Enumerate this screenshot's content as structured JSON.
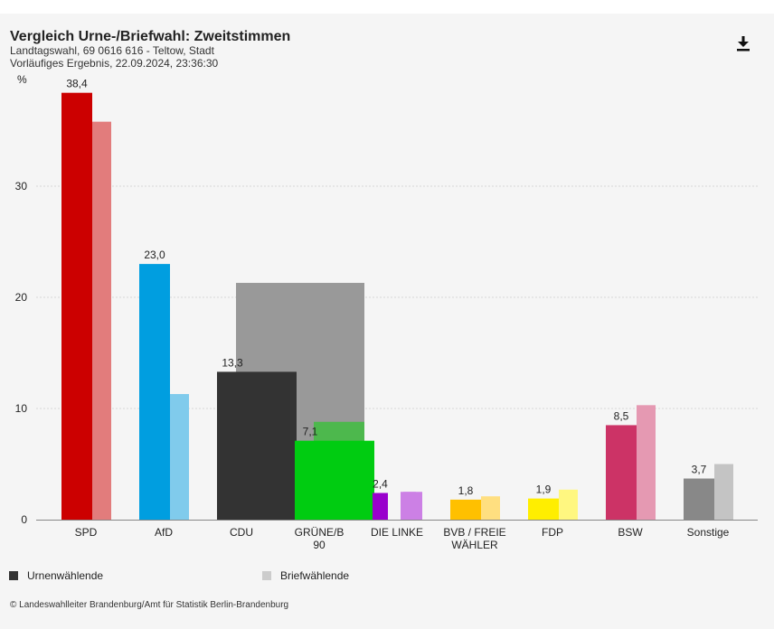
{
  "header": {
    "title": "Vergleich Urne-/Briefwahl: Zweitstimmen",
    "subtitle_line1": "Landtagswahl, 69 0616 616 - Teltow, Stadt",
    "subtitle_line2": "Vorläufiges Ergebnis, 22.09.2024, 23:36:30"
  },
  "legend": {
    "urne_label": "Urnenwählende",
    "brief_label": "Briefwählende",
    "urne_color": "#333333",
    "brief_color": "#cccccc"
  },
  "footer": {
    "source": "© Landeswahlleiter Brandenburg/Amt für Statistik Berlin-Brandenburg"
  },
  "icons": {
    "download": "download-icon"
  },
  "chart_data": {
    "type": "bar",
    "ylabel": "%",
    "ylim": [
      0,
      40
    ],
    "yticks": [
      0,
      10,
      20,
      30
    ],
    "grid": true,
    "categories": [
      {
        "label": [
          "SPD"
        ],
        "urne": 38.4,
        "brief": 35.8,
        "urne_color": "#cc0000",
        "brief_color": "#e27c7c",
        "urne_label": "38,4"
      },
      {
        "label": [
          "AfD"
        ],
        "urne": 23.0,
        "brief": 11.3,
        "urne_color": "#009ee0",
        "brief_color": "#80cbec",
        "urne_label": "23,0"
      },
      {
        "label": [
          "CDU"
        ],
        "urne": 13.3,
        "brief": 21.3,
        "urne_color": "#333333",
        "brief_color": "#999999",
        "urne_label": "13,3"
      },
      {
        "label": [
          "GRÜNE/B",
          "90"
        ],
        "urne": 7.1,
        "brief": 8.8,
        "urne_color": "#00cc11",
        "brief_color": "#4db84d",
        "urne_label": "7,1"
      },
      {
        "label": [
          "DIE LINKE"
        ],
        "urne": 2.4,
        "brief": 2.5,
        "urne_color": "#9900cc",
        "brief_color": "#cc80e5",
        "urne_label": "2,4"
      },
      {
        "label": [
          "BVB / FREIE",
          "WÄHLER"
        ],
        "urne": 1.8,
        "brief": 2.1,
        "urne_color": "#ffc000",
        "brief_color": "#ffdf80",
        "urne_label": "1,8"
      },
      {
        "label": [
          "FDP"
        ],
        "urne": 1.9,
        "brief": 2.7,
        "urne_color": "#ffee00",
        "brief_color": "#fff780",
        "urne_label": "1,9"
      },
      {
        "label": [
          "BSW"
        ],
        "urne": 8.5,
        "brief": 10.3,
        "urne_color": "#cc3366",
        "brief_color": "#e599b2",
        "urne_label": "8,5"
      },
      {
        "label": [
          "Sonstige"
        ],
        "urne": 3.7,
        "brief": 5.0,
        "urne_color": "#888888",
        "brief_color": "#c4c4c4",
        "urne_label": "3,7"
      }
    ]
  }
}
